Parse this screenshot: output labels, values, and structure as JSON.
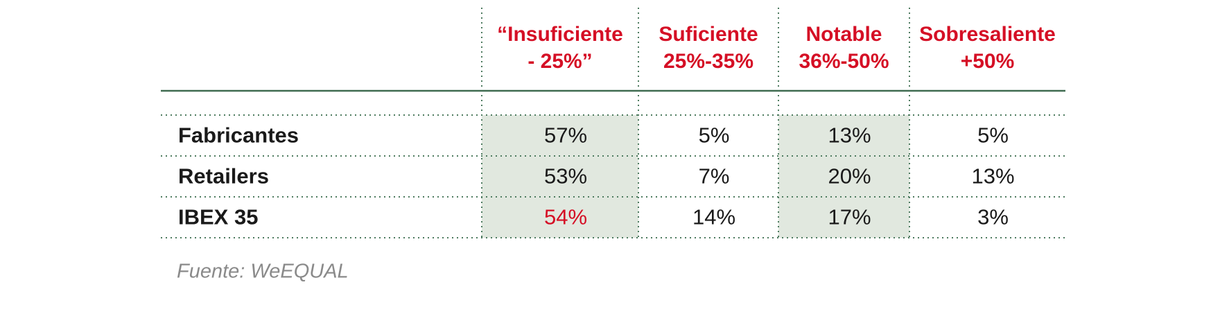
{
  "table": {
    "headers": [
      [
        "“Insuficiente",
        "- 25%”"
      ],
      [
        "Suficiente",
        "25%-35%"
      ],
      [
        "Notable",
        "36%-50%"
      ],
      [
        "Sobresaliente",
        "+50%"
      ]
    ],
    "rows": [
      [
        "Fabricantes",
        "57%",
        "5%",
        "13%",
        "5%"
      ],
      [
        "Retailers",
        "53%",
        "7%",
        "20%",
        "13%"
      ],
      [
        "IBEX 35",
        "54%",
        "14%",
        "17%",
        "3%"
      ]
    ]
  },
  "footer": {
    "source": "Fuente: WeEQUAL"
  }
}
